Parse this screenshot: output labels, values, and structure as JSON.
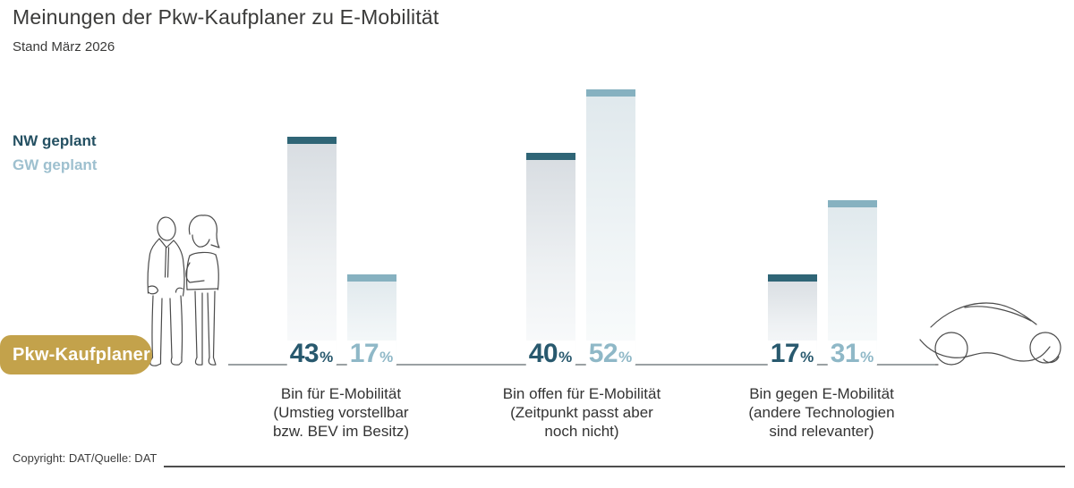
{
  "header": {
    "title": "Meinungen der Pkw-Kaufplaner zu E-Mobilität",
    "subtitle": "Stand März 2026"
  },
  "legend": {
    "nw_label": "NW geplant",
    "gw_label": "GW geplant"
  },
  "badge": {
    "label": "Pkw-Kaufplaner"
  },
  "unit": "%",
  "chart_data": {
    "type": "bar",
    "title": "Meinungen der Pkw-Kaufplaner zu E-Mobilität",
    "subtitle": "Stand März 2026",
    "unit": "%",
    "categories": [
      "Bin für E-Mobilität (Umstieg vorstellbar bzw. BEV im Besitz)",
      "Bin offen für E-Mobilität (Zeitpunkt passt aber noch nicht)",
      "Bin gegen E-Mobilität (andere Technologien sind relevanter)"
    ],
    "series": [
      {
        "name": "NW geplant",
        "values": [
          43,
          40,
          17
        ]
      },
      {
        "name": "GW geplant",
        "values": [
          17,
          52,
          31
        ]
      }
    ],
    "legend_position": "left",
    "grid": false,
    "ylim": [
      0,
      55
    ],
    "value_labels": "at-baseline"
  },
  "captions": [
    "Bin für E-Mobilität\n(Umstieg vorstellbar\nbzw. BEV im Besitz)",
    "Bin offen für E-Mobilität\n(Zeitpunkt passt aber\nnoch nicht)",
    "Bin gegen E-Mobilität\n(andere Technologien\nsind relevanter)"
  ],
  "footer": {
    "copyright": "Copyright: DAT/Quelle: DAT"
  },
  "colors": {
    "nw_cap": "#2f6576",
    "nw_text": "#28596e",
    "gw_cap": "#86b1c0",
    "gw_text": "#8fb8c7",
    "badge_gold": "#c3a24b",
    "baseline": "#9aa0a3"
  },
  "illustrations": {
    "people": "two-people-line-art",
    "car": "car-line-art"
  }
}
